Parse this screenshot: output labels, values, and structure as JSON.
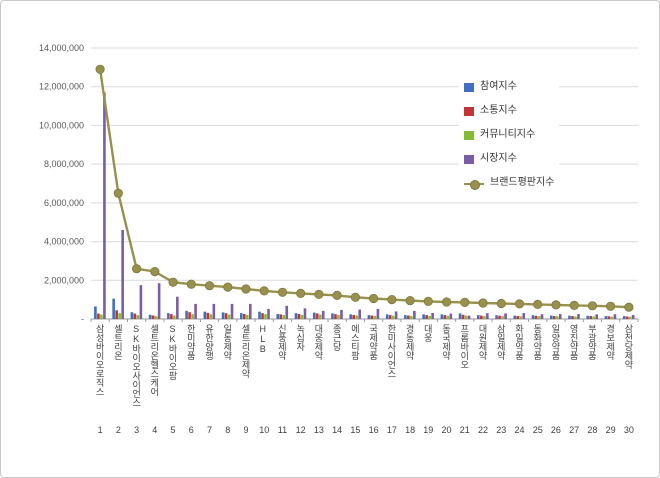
{
  "chart_data": {
    "type": "bar",
    "subtype": "clustered-bars-with-line-overlay",
    "title": "",
    "xlabel": "",
    "ylabel": "",
    "ylim": [
      0,
      14000000
    ],
    "ytick_step": 2000000,
    "ytick_labels": [
      "14,000,000",
      "12,000,000",
      "10,000,000",
      "8,000,000",
      "6,000,000",
      "4,000,000",
      "2,000,000",
      "-"
    ],
    "grid": true,
    "legend_position": "right-top-overlay",
    "categories": [
      "삼성바이오로직스",
      "셀트리온",
      "SK바이오사이언스",
      "셀트리온헬스케어",
      "SK바이오팜",
      "한미약품",
      "유한양행",
      "일동제약",
      "셀트리온제약",
      "HLB",
      "신풍제약",
      "녹십자",
      "대웅제약",
      "종근당",
      "에스티팜",
      "국제약품",
      "한미사이언스",
      "경동제약",
      "대웅",
      "동국제약",
      "프롬바이오",
      "대원제약",
      "삼일제약",
      "화일약품",
      "동화약품",
      "일양약품",
      "영진약품",
      "부광약품",
      "경보제약",
      "삼천당제약"
    ],
    "ranks": [
      "1",
      "2",
      "3",
      "4",
      "5",
      "6",
      "7",
      "8",
      "9",
      "10",
      "11",
      "12",
      "13",
      "14",
      "15",
      "16",
      "17",
      "18",
      "19",
      "20",
      "21",
      "22",
      "23",
      "24",
      "25",
      "26",
      "27",
      "28",
      "29",
      "30"
    ],
    "series": [
      {
        "name": "참여지수",
        "type": "bar",
        "color": "#3F6FBE",
        "values": [
          650000,
          1050000,
          350000,
          220000,
          300000,
          420000,
          380000,
          340000,
          300000,
          380000,
          260000,
          300000,
          330000,
          290000,
          240000,
          200000,
          240000,
          200000,
          240000,
          240000,
          290000,
          200000,
          195000,
          175000,
          195000,
          180000,
          170000,
          160000,
          150000,
          150000
        ]
      },
      {
        "name": "소통지수",
        "type": "bar",
        "color": "#C53434",
        "values": [
          280000,
          450000,
          280000,
          180000,
          250000,
          350000,
          320000,
          300000,
          260000,
          300000,
          240000,
          260000,
          290000,
          250000,
          210000,
          180000,
          200000,
          180000,
          200000,
          200000,
          215000,
          175000,
          170000,
          155000,
          165000,
          155000,
          150000,
          150000,
          140000,
          130000
        ]
      },
      {
        "name": "커뮤니티지수",
        "type": "bar",
        "color": "#84BC34",
        "values": [
          230000,
          300000,
          200000,
          150000,
          180000,
          250000,
          240000,
          230000,
          210000,
          250000,
          200000,
          210000,
          230000,
          210000,
          180000,
          160000,
          170000,
          150000,
          160000,
          160000,
          180000,
          150000,
          145000,
          140000,
          150000,
          140000,
          130000,
          130000,
          120000,
          120000
        ]
      },
      {
        "name": "시장지수",
        "type": "bar",
        "color": "#7A5CA8",
        "values": [
          11700000,
          4600000,
          1750000,
          1850000,
          1150000,
          780000,
          780000,
          780000,
          780000,
          520000,
          680000,
          550000,
          420000,
          470000,
          490000,
          520000,
          390000,
          420000,
          310000,
          280000,
          170000,
          300000,
          290000,
          310000,
          245000,
          255000,
          255000,
          240000,
          245000,
          210000
        ]
      },
      {
        "name": "브랜드평판지수",
        "type": "line",
        "color": "#98914E",
        "marker_stroke": "#7E773D",
        "values": [
          12900000,
          6500000,
          2600000,
          2450000,
          1900000,
          1800000,
          1720000,
          1650000,
          1550000,
          1450000,
          1380000,
          1320000,
          1270000,
          1220000,
          1120000,
          1060000,
          1000000,
          950000,
          910000,
          880000,
          855000,
          825000,
          800000,
          780000,
          755000,
          730000,
          705000,
          680000,
          655000,
          610000
        ]
      }
    ]
  }
}
